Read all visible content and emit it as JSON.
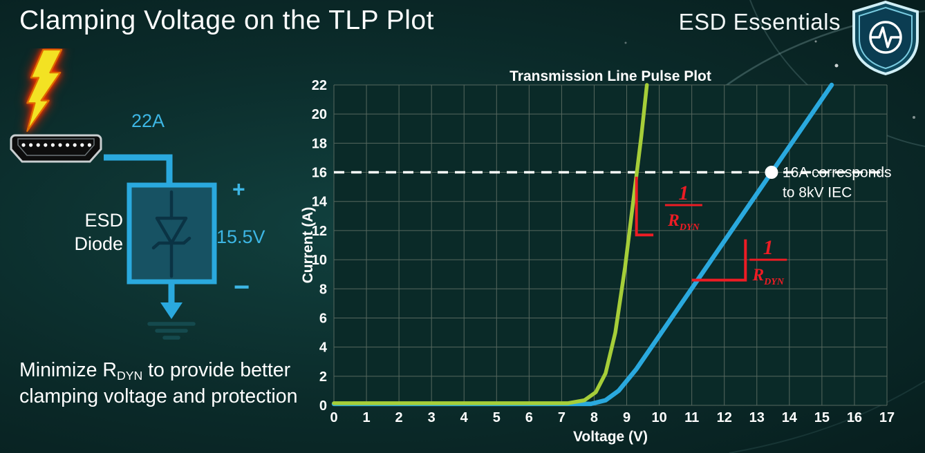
{
  "slide": {
    "title": "Clamping Voltage on the TLP Plot",
    "brand": "ESD Essentials"
  },
  "diagram": {
    "surge_current": "22A",
    "device_label": "ESD Diode",
    "plus": "+",
    "clamp_voltage": "15.5V",
    "minus": "−"
  },
  "footnote": {
    "part1": "Minimize R",
    "sub": "DYN",
    "part2": " to provide better clamping voltage and protection"
  },
  "chart_data": {
    "type": "line",
    "title": "Transmission Line Pulse Plot",
    "xlabel": "Voltage (V)",
    "ylabel": "Current (A)",
    "xlim": [
      0,
      17
    ],
    "ylim": [
      0,
      22
    ],
    "x_ticks": [
      0,
      1,
      2,
      3,
      4,
      5,
      6,
      7,
      8,
      9,
      10,
      11,
      12,
      13,
      14,
      15,
      16,
      17
    ],
    "y_ticks": [
      0,
      2,
      4,
      6,
      8,
      10,
      12,
      14,
      16,
      18,
      20,
      22
    ],
    "grid": true,
    "legend": "none",
    "series": [
      {
        "name": "blue-shallow-curve-higher-rdyn",
        "color": "#2aa9de",
        "width": 6.5,
        "points": [
          [
            0,
            0.1
          ],
          [
            7.9,
            0.1
          ],
          [
            8.35,
            0.35
          ],
          [
            8.75,
            1.0
          ],
          [
            9.3,
            2.5
          ],
          [
            15.3,
            22
          ]
        ]
      },
      {
        "name": "green-steep-curve-lower-rdyn",
        "color": "#a6ce39",
        "width": 5.5,
        "points": [
          [
            0,
            0.15
          ],
          [
            7.2,
            0.15
          ],
          [
            7.7,
            0.35
          ],
          [
            8.05,
            0.9
          ],
          [
            8.35,
            2.2
          ],
          [
            8.65,
            5.0
          ],
          [
            8.95,
            9.5
          ],
          [
            9.2,
            14
          ],
          [
            9.45,
            18.5
          ],
          [
            9.62,
            22
          ]
        ]
      }
    ],
    "reference_line": {
      "y": 16,
      "color": "#ffffff",
      "style": "dashed"
    },
    "marker_point": {
      "x": 13.45,
      "y": 16,
      "color": "#ffffff",
      "label_lines": [
        "16A corresponds",
        "to 8kV IEC"
      ]
    },
    "slope_markers": [
      {
        "points": [
          [
            9.3,
            15.7
          ],
          [
            9.3,
            11.7
          ],
          [
            9.82,
            11.7
          ]
        ],
        "label_at": [
          10.75,
          13.75
        ],
        "label": {
          "numerator": "1",
          "den_base": "R",
          "den_sub": "DYN"
        }
      },
      {
        "points": [
          [
            11.0,
            8.6
          ],
          [
            12.65,
            8.6
          ],
          [
            12.65,
            11.4
          ]
        ],
        "label_at": [
          13.35,
          10.0
        ],
        "label": {
          "numerator": "1",
          "den_base": "R",
          "den_sub": "DYN"
        }
      }
    ],
    "colors": {
      "plot_bg": "#0a2a28",
      "grid": "#57685f",
      "marker_red": "#ed1c24",
      "text": "#ffffff"
    }
  }
}
